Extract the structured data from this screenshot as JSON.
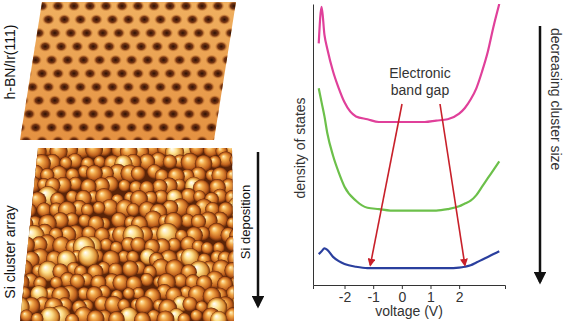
{
  "images": [
    {
      "label": "h-BN/Ir(111)"
    },
    {
      "label": "Si cluster array"
    }
  ],
  "process_arrow": {
    "label": "Si deposition"
  },
  "side_arrow": {
    "label": "decreasing cluster size"
  },
  "chart_data": {
    "type": "line",
    "x_label": "voltage (V)",
    "y_label": "density of states",
    "x": [
      -2.9,
      -2.8,
      -2.7,
      -2.6,
      -2.4,
      -2.2,
      -2.0,
      -1.6,
      -1.2,
      -0.8,
      -0.4,
      0,
      0.4,
      0.8,
      1.2,
      1.6,
      2.0,
      2.2,
      2.4,
      2.6,
      2.8,
      3.0,
      3.2,
      3.4
    ],
    "series": [
      {
        "color": "#e0409a",
        "values": [
          8.6,
          9.9,
          8.9,
          8.4,
          7.6,
          7.0,
          6.5,
          6.0,
          5.9,
          5.8,
          5.8,
          5.8,
          5.8,
          5.8,
          5.85,
          5.9,
          6.1,
          6.3,
          6.6,
          7.0,
          7.6,
          8.3,
          9.2,
          10.0
        ]
      },
      {
        "color": "#6cc04a",
        "values": [
          7.0,
          6.5,
          6.0,
          5.4,
          4.6,
          4.0,
          3.5,
          3.0,
          2.75,
          2.7,
          2.65,
          2.65,
          2.65,
          2.65,
          2.65,
          2.7,
          2.8,
          2.9,
          3.0,
          3.2,
          3.5,
          3.8,
          4.1,
          4.4
        ]
      },
      {
        "color": "#2a3f9e",
        "values": [
          1.1,
          1.2,
          1.3,
          1.25,
          1.0,
          0.85,
          0.75,
          0.65,
          0.6,
          0.6,
          0.6,
          0.6,
          0.6,
          0.6,
          0.6,
          0.6,
          0.62,
          0.65,
          0.7,
          0.8,
          0.9,
          1.0,
          1.1,
          1.2
        ]
      }
    ],
    "xlim": [
      -3.1,
      3.6
    ],
    "xticks": [
      -2,
      -1,
      0,
      1,
      2
    ],
    "ylim": [
      0,
      10
    ],
    "tick_labels": "x",
    "grid": false,
    "annotation": {
      "lines": [
        "Electronic",
        "band gap"
      ],
      "color": "#c8202a",
      "targets": [
        {
          "x": -1.1,
          "y": 0.6
        },
        {
          "x": 2.2,
          "y": 0.6
        }
      ]
    }
  }
}
